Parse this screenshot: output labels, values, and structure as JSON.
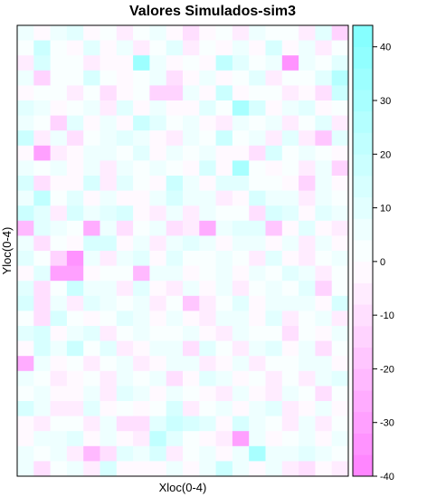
{
  "chart_data": {
    "type": "heatmap",
    "title": "Valores Simulados-sim3",
    "xlabel": "Xloc(0-4)",
    "ylabel": "Yloc(0-4)",
    "grid_cols": 20,
    "grid_rows": 30,
    "value_range": [
      -40,
      44
    ],
    "colorbar_ticks": [
      40,
      30,
      20,
      10,
      0,
      -10,
      -20,
      -30,
      -40
    ],
    "colorbar_tick_labels": [
      "40",
      "30",
      "20",
      "10",
      "0",
      "-10",
      "-20",
      "-30",
      "-40"
    ],
    "colorbar_step": 4,
    "colors": {
      "low": "#ff80ff",
      "mid": "#ffffff",
      "high": "#80ffff",
      "frame": "#000000"
    },
    "values": [
      [
        6,
        -3,
        4,
        10,
        -4,
        2,
        -6,
        0,
        5,
        -3,
        -9,
        -4,
        3,
        -6,
        5,
        0,
        2,
        -5,
        11,
        -16
      ],
      [
        2,
        16,
        0,
        -4,
        8,
        -3,
        6,
        -5,
        3,
        9,
        -7,
        0,
        -3,
        5,
        -4,
        12,
        -2,
        6,
        -5,
        3
      ],
      [
        -5,
        14,
        2,
        1,
        -6,
        -4,
        -2,
        34,
        6,
        -1,
        3,
        -3,
        22,
        8,
        0,
        6,
        -33,
        4,
        1,
        8
      ],
      [
        4,
        -14,
        3,
        0,
        12,
        3,
        -4,
        0,
        5,
        -10,
        -2,
        7,
        -1,
        3,
        8,
        -6,
        2,
        0,
        8,
        24
      ],
      [
        -2,
        0,
        3,
        -5,
        1,
        -10,
        -3,
        0,
        -16,
        -15,
        4,
        -3,
        16,
        -1,
        2,
        0,
        -6,
        -4,
        -9,
        18
      ],
      [
        8,
        5,
        -4,
        0,
        6,
        -8,
        11,
        -3,
        6,
        -3,
        -4,
        10,
        1,
        28,
        12,
        -1,
        4,
        9,
        -3,
        2
      ],
      [
        5,
        1,
        -15,
        9,
        -3,
        4,
        -2,
        18,
        8,
        2,
        6,
        -4,
        -8,
        5,
        3,
        6,
        -5,
        3,
        10,
        -6
      ],
      [
        16,
        -6,
        6,
        -9,
        0,
        4,
        10,
        4,
        -3,
        -6,
        7,
        3,
        16,
        1,
        6,
        -5,
        9,
        -5,
        -18,
        8
      ],
      [
        -3,
        -29,
        -6,
        -4,
        4,
        4,
        0,
        10,
        -2,
        4,
        3,
        7,
        -4,
        -4,
        -9,
        12,
        3,
        6,
        0,
        -3
      ],
      [
        4,
        0,
        6,
        -4,
        6,
        -5,
        5,
        2,
        6,
        0,
        -4,
        12,
        -3,
        29,
        2,
        -4,
        2,
        -7,
        5,
        -13
      ],
      [
        12,
        -9,
        -3,
        -1,
        12,
        -5,
        8,
        0,
        -4,
        16,
        4,
        -2,
        8,
        10,
        3,
        0,
        -3,
        -14,
        4,
        -4
      ],
      [
        5,
        20,
        3,
        8,
        -4,
        6,
        -4,
        -3,
        6,
        15,
        5,
        4,
        -6,
        -3,
        12,
        4,
        6,
        -6,
        6,
        0
      ],
      [
        18,
        8,
        -5,
        12,
        4,
        10,
        14,
        -2,
        -5,
        5,
        -8,
        7,
        3,
        0,
        -9,
        13,
        8,
        -3,
        10,
        5
      ],
      [
        -22,
        9,
        4,
        0,
        -25,
        5,
        -10,
        1,
        5,
        -12,
        -6,
        -26,
        4,
        10,
        8,
        -20,
        -2,
        8,
        -4,
        -6
      ],
      [
        6,
        -12,
        2,
        -4,
        15,
        12,
        -2,
        5,
        -8,
        6,
        8,
        4,
        -4,
        6,
        7,
        -2,
        4,
        -5,
        5,
        -4
      ],
      [
        10,
        0,
        -14,
        -34,
        4,
        -6,
        5,
        9,
        -3,
        8,
        2,
        0,
        5,
        3,
        -6,
        8,
        -3,
        -5,
        3,
        4
      ],
      [
        -3,
        10,
        -31,
        -31,
        -3,
        0,
        2,
        -24,
        4,
        5,
        -4,
        0,
        7,
        -1,
        4,
        2,
        8,
        6,
        -5,
        0
      ],
      [
        8,
        -12,
        3,
        16,
        6,
        4,
        -5,
        11,
        -4,
        -7,
        6,
        -3,
        5,
        -6,
        3,
        4,
        0,
        8,
        -13,
        2
      ],
      [
        15,
        -10,
        5,
        -6,
        9,
        4,
        1,
        6,
        -6,
        0,
        -18,
        -6,
        1,
        10,
        -4,
        6,
        5,
        5,
        -4,
        14
      ],
      [
        2,
        -9,
        12,
        3,
        -2,
        3,
        9,
        7,
        -4,
        5,
        -3,
        -6,
        5,
        4,
        -4,
        9,
        -5,
        2,
        4,
        -6
      ],
      [
        10,
        15,
        -4,
        5,
        9,
        -8,
        3,
        4,
        3,
        0,
        7,
        -3,
        -5,
        6,
        3,
        0,
        -9,
        2,
        -4,
        5
      ],
      [
        -4,
        14,
        6,
        18,
        2,
        11,
        -5,
        -3,
        6,
        7,
        -10,
        8,
        0,
        -6,
        4,
        10,
        -4,
        4,
        -10,
        3
      ],
      [
        -26,
        5,
        -4,
        0,
        -7,
        0,
        6,
        -8,
        -4,
        5,
        4,
        -5,
        -3,
        4,
        -6,
        2,
        3,
        5,
        6,
        -2
      ],
      [
        5,
        0,
        -5,
        -4,
        3,
        -6,
        6,
        0,
        6,
        -10,
        -4,
        8,
        4,
        -4,
        0,
        -5,
        3,
        -6,
        4,
        8
      ],
      [
        3,
        5,
        -3,
        -2,
        6,
        -5,
        8,
        4,
        -3,
        6,
        3,
        -2,
        -5,
        6,
        -3,
        -5,
        4,
        3,
        -9,
        2
      ],
      [
        15,
        6,
        -6,
        -5,
        8,
        -4,
        2,
        -4,
        0,
        12,
        -6,
        3,
        7,
        -4,
        6,
        8,
        -6,
        -2,
        5,
        -4
      ],
      [
        -4,
        -6,
        3,
        2,
        -6,
        6,
        -10,
        -12,
        10,
        17,
        12,
        10,
        -3,
        12,
        5,
        3,
        -8,
        5,
        -7,
        3
      ],
      [
        -3,
        6,
        5,
        8,
        -4,
        5,
        -3,
        -6,
        22,
        11,
        0,
        -3,
        -8,
        -29,
        4,
        -3,
        2,
        6,
        -4,
        5
      ],
      [
        6,
        3,
        4,
        -6,
        -22,
        -10,
        8,
        7,
        12,
        -5,
        2,
        6,
        -4,
        5,
        29,
        5,
        4,
        8,
        6,
        0
      ],
      [
        4,
        -12,
        2,
        5,
        -5,
        12,
        -3,
        -4,
        -2,
        5,
        -4,
        4,
        18,
        4,
        -3,
        6,
        -5,
        -11,
        -3,
        -7
      ]
    ]
  }
}
